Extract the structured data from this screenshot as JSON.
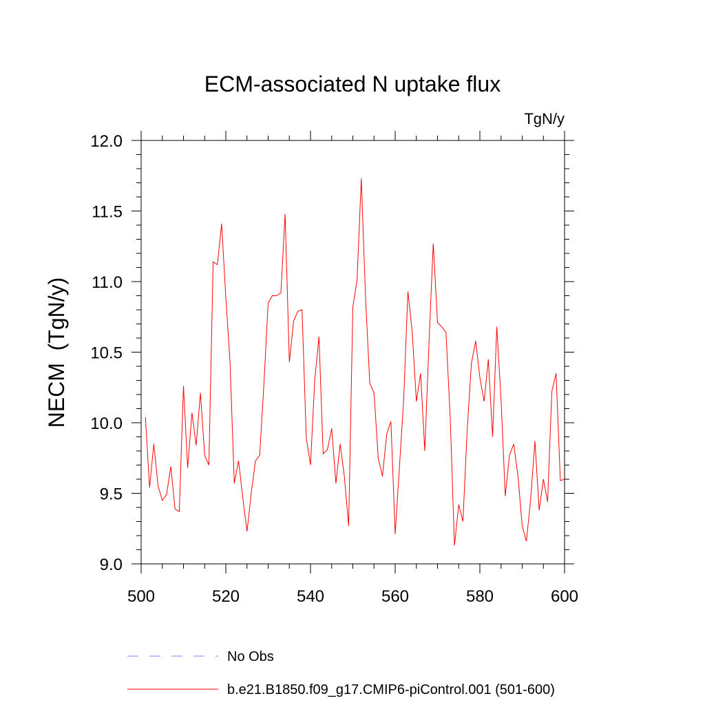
{
  "chart_data": {
    "type": "line",
    "title": "ECM-associated N uptake flux",
    "units_label": "TgN/y",
    "ylabel": "NECM  (TgN/y)",
    "xlabel": "",
    "xlim": [
      500,
      600
    ],
    "ylim": [
      9.0,
      12.0
    ],
    "x_ticks": [
      "500",
      "520",
      "540",
      "560",
      "580",
      "600"
    ],
    "y_ticks": [
      "9.0",
      "9.5",
      "10.0",
      "10.5",
      "11.0",
      "11.5",
      "12.0"
    ],
    "legend": [
      {
        "label": "No Obs",
        "color": "#8080ff",
        "dash": "dashed"
      },
      {
        "label": "b.e21.B1850.f09_g17.CMIP6-piControl.001 (501-600)",
        "color": "#ff0000",
        "dash": "solid"
      }
    ],
    "series": [
      {
        "name": "b.e21.B1850.f09_g17.CMIP6-piControl.001 (501-600)",
        "color": "#ff0000",
        "x": [
          501,
          502,
          503,
          504,
          505,
          506,
          507,
          508,
          509,
          510,
          511,
          512,
          513,
          514,
          515,
          516,
          517,
          518,
          519,
          520,
          521,
          522,
          523,
          524,
          525,
          526,
          527,
          528,
          529,
          530,
          531,
          532,
          533,
          534,
          535,
          536,
          537,
          538,
          539,
          540,
          541,
          542,
          543,
          544,
          545,
          546,
          547,
          548,
          549,
          550,
          551,
          552,
          553,
          554,
          555,
          556,
          557,
          558,
          559,
          560,
          561,
          562,
          563,
          564,
          565,
          566,
          567,
          568,
          569,
          570,
          571,
          572,
          573,
          574,
          575,
          576,
          577,
          578,
          579,
          580,
          581,
          582,
          583,
          584,
          585,
          586,
          587,
          588,
          589,
          590,
          591,
          592,
          593,
          594,
          595,
          596,
          597,
          598,
          599,
          600
        ],
        "values": [
          10.04,
          9.54,
          9.85,
          9.55,
          9.45,
          9.49,
          9.69,
          9.39,
          9.37,
          10.26,
          9.68,
          10.07,
          9.84,
          10.21,
          9.77,
          9.7,
          11.14,
          11.12,
          11.41,
          10.89,
          10.43,
          9.57,
          9.73,
          9.47,
          9.23,
          9.5,
          9.73,
          9.77,
          10.28,
          10.85,
          10.9,
          10.9,
          10.92,
          11.48,
          10.43,
          10.72,
          10.79,
          10.8,
          9.89,
          9.7,
          10.3,
          10.61,
          9.78,
          9.81,
          9.96,
          9.57,
          9.85,
          9.62,
          9.27,
          10.82,
          11.01,
          11.73,
          10.88,
          10.28,
          10.21,
          9.75,
          9.62,
          9.92,
          10.01,
          9.21,
          9.68,
          10.16,
          10.93,
          10.65,
          10.15,
          10.35,
          9.8,
          10.58,
          11.27,
          10.71,
          10.68,
          10.64,
          10.03,
          9.13,
          9.42,
          9.3,
          9.94,
          10.42,
          10.58,
          10.32,
          10.15,
          10.45,
          9.9,
          10.68,
          10.16,
          9.48,
          9.77,
          9.85,
          9.62,
          9.27,
          9.16,
          9.46,
          9.87,
          9.38,
          9.6,
          9.44,
          10.22,
          10.35,
          9.59,
          9.6
        ]
      }
    ]
  }
}
